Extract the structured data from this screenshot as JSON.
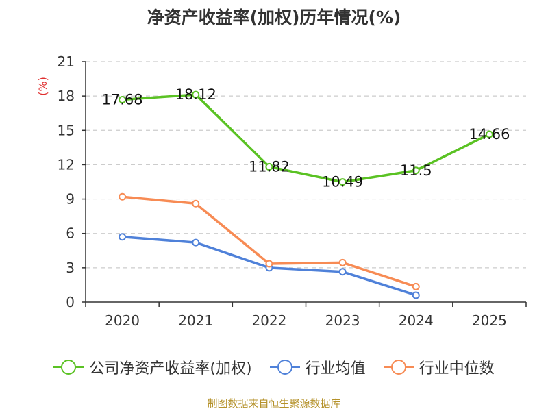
{
  "chart_data": {
    "type": "line",
    "title": "净资产收益率(加权)历年情况(%)",
    "ylabel": "(%)",
    "xlabel": "",
    "ylim": [
      0,
      21
    ],
    "yticks": [
      0,
      3,
      6,
      9,
      12,
      15,
      18,
      21
    ],
    "categories": [
      "2020",
      "2021",
      "2022",
      "2023",
      "2024",
      "2025"
    ],
    "grid": true,
    "legend_position": "bottom",
    "series": [
      {
        "name": "公司净资产收益率(加权)",
        "color": "#5ac223",
        "values": [
          17.68,
          18.12,
          11.82,
          10.49,
          11.5,
          14.66
        ],
        "show_labels": true
      },
      {
        "name": "行业均值",
        "color": "#4f81d9",
        "values": [
          5.7,
          5.2,
          3.0,
          2.65,
          0.6,
          null
        ],
        "show_labels": false
      },
      {
        "name": "行业中位数",
        "color": "#f78b54",
        "values": [
          9.2,
          8.6,
          3.35,
          3.45,
          1.35,
          null
        ],
        "show_labels": false
      }
    ],
    "source": "制图数据来自恒生聚源数据库"
  }
}
